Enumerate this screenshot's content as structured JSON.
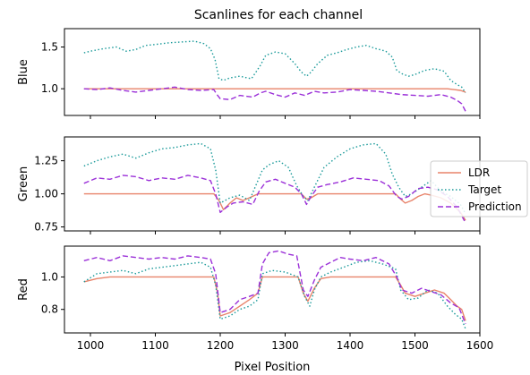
{
  "chart_data": {
    "type": "line",
    "title": "Scanlines for each channel",
    "xlabel": "Pixel Position",
    "xlim": [
      960,
      1600
    ],
    "xticks": [
      1000,
      1100,
      1200,
      1300,
      1400,
      1500,
      1600
    ],
    "legend": {
      "placement": "right",
      "entries": [
        {
          "name": "LDR",
          "color": "#e8836a",
          "style": "solid"
        },
        {
          "name": "Target",
          "color": "#1a9a9a",
          "style": "dotted"
        },
        {
          "name": "Prediction",
          "color": "#9b30d8",
          "style": "dashed"
        }
      ]
    },
    "panels": [
      {
        "ylabel": "Blue",
        "ylim": [
          0.68,
          1.72
        ],
        "yticks": [
          "1.0",
          "1.5"
        ],
        "ytick_values": [
          1.0,
          1.5
        ],
        "series": [
          {
            "name": "LDR",
            "x": [
              990,
              1050,
              1100,
              1150,
              1190,
              1200,
              1250,
              1300,
              1350,
              1400,
              1450,
              1500,
              1550,
              1570,
              1578
            ],
            "y": [
              1.0,
              1.0,
              1.0,
              1.0,
              1.0,
              1.0,
              1.0,
              1.0,
              1.0,
              1.0,
              1.0,
              1.0,
              1.0,
              0.98,
              0.96
            ]
          },
          {
            "name": "Target",
            "x": [
              990,
              1000,
              1020,
              1040,
              1055,
              1070,
              1085,
              1100,
              1120,
              1140,
              1160,
              1175,
              1185,
              1192,
              1198,
              1205,
              1215,
              1230,
              1248,
              1255,
              1262,
              1270,
              1285,
              1300,
              1315,
              1325,
              1333,
              1340,
              1350,
              1365,
              1380,
              1395,
              1410,
              1425,
              1440,
              1455,
              1465,
              1472,
              1480,
              1490,
              1500,
              1515,
              1530,
              1545,
              1555,
              1565,
              1572,
              1578
            ],
            "y": [
              1.43,
              1.45,
              1.48,
              1.5,
              1.45,
              1.47,
              1.52,
              1.53,
              1.55,
              1.56,
              1.57,
              1.54,
              1.48,
              1.35,
              1.12,
              1.1,
              1.13,
              1.15,
              1.12,
              1.2,
              1.28,
              1.4,
              1.44,
              1.42,
              1.3,
              1.2,
              1.15,
              1.2,
              1.3,
              1.4,
              1.43,
              1.47,
              1.5,
              1.52,
              1.48,
              1.45,
              1.38,
              1.22,
              1.18,
              1.15,
              1.17,
              1.22,
              1.24,
              1.21,
              1.1,
              1.05,
              1.02,
              0.95
            ]
          },
          {
            "name": "Prediction",
            "x": [
              990,
              1010,
              1030,
              1050,
              1070,
              1090,
              1110,
              1130,
              1150,
              1170,
              1190,
              1195,
              1200,
              1215,
              1230,
              1250,
              1262,
              1270,
              1285,
              1300,
              1315,
              1330,
              1345,
              1360,
              1380,
              1400,
              1420,
              1440,
              1460,
              1480,
              1500,
              1520,
              1540,
              1555,
              1565,
              1572,
              1578
            ],
            "y": [
              1.0,
              0.99,
              1.01,
              0.98,
              0.96,
              0.98,
              1.0,
              1.02,
              0.99,
              0.98,
              0.99,
              0.93,
              0.88,
              0.87,
              0.92,
              0.9,
              0.95,
              0.97,
              0.93,
              0.9,
              0.95,
              0.92,
              0.97,
              0.95,
              0.96,
              0.99,
              0.98,
              0.97,
              0.95,
              0.93,
              0.92,
              0.91,
              0.93,
              0.9,
              0.86,
              0.82,
              0.73
            ]
          }
        ]
      },
      {
        "ylabel": "Green",
        "ylim": [
          0.72,
          1.43
        ],
        "yticks": [
          "0.75",
          "1.00",
          "1.25"
        ],
        "ytick_values": [
          0.75,
          1.0,
          1.25
        ],
        "series": [
          {
            "name": "LDR",
            "x": [
              990,
              1190,
              1198,
              1205,
              1215,
              1225,
              1235,
              1245,
              1258,
              1270,
              1300,
              1325,
              1333,
              1340,
              1350,
              1400,
              1470,
              1478,
              1485,
              1495,
              1505,
              1515,
              1525,
              1540,
              1555,
              1570,
              1578
            ],
            "y": [
              1.0,
              1.0,
              0.95,
              0.88,
              0.93,
              0.97,
              0.95,
              0.97,
              1.0,
              1.0,
              1.0,
              1.0,
              0.96,
              0.97,
              1.0,
              1.0,
              1.0,
              0.96,
              0.93,
              0.95,
              0.98,
              1.0,
              0.99,
              0.97,
              0.93,
              0.86,
              0.8
            ]
          },
          {
            "name": "Target",
            "x": [
              990,
              1010,
              1030,
              1050,
              1070,
              1090,
              1110,
              1130,
              1150,
              1170,
              1185,
              1193,
              1200,
              1215,
              1230,
              1245,
              1258,
              1265,
              1275,
              1290,
              1305,
              1318,
              1328,
              1335,
              1345,
              1360,
              1380,
              1400,
              1420,
              1440,
              1455,
              1465,
              1475,
              1485,
              1495,
              1510,
              1525,
              1540,
              1555,
              1570,
              1578
            ],
            "y": [
              1.21,
              1.25,
              1.28,
              1.3,
              1.27,
              1.31,
              1.34,
              1.35,
              1.37,
              1.38,
              1.34,
              1.18,
              0.93,
              0.97,
              0.99,
              0.95,
              1.1,
              1.18,
              1.22,
              1.25,
              1.2,
              1.06,
              0.98,
              0.95,
              1.05,
              1.2,
              1.28,
              1.34,
              1.37,
              1.38,
              1.3,
              1.15,
              1.05,
              0.98,
              1.0,
              1.05,
              1.1,
              1.02,
              0.98,
              0.92,
              0.85
            ]
          },
          {
            "name": "Prediction",
            "x": [
              990,
              1010,
              1030,
              1050,
              1070,
              1090,
              1110,
              1130,
              1150,
              1170,
              1185,
              1193,
              1200,
              1210,
              1220,
              1235,
              1250,
              1260,
              1270,
              1285,
              1300,
              1315,
              1325,
              1333,
              1340,
              1350,
              1365,
              1385,
              1405,
              1425,
              1445,
              1460,
              1472,
              1480,
              1490,
              1505,
              1520,
              1535,
              1550,
              1565,
              1578
            ],
            "y": [
              1.08,
              1.12,
              1.11,
              1.14,
              1.13,
              1.1,
              1.12,
              1.11,
              1.14,
              1.12,
              1.1,
              1.0,
              0.86,
              0.9,
              0.93,
              0.94,
              0.92,
              1.02,
              1.09,
              1.11,
              1.08,
              1.05,
              1.0,
              0.92,
              0.98,
              1.05,
              1.07,
              1.09,
              1.12,
              1.11,
              1.1,
              1.06,
              0.98,
              0.96,
              0.98,
              1.04,
              1.05,
              1.03,
              0.98,
              0.9,
              0.78
            ]
          }
        ]
      },
      {
        "ylabel": "Red",
        "ylim": [
          0.655,
          1.19
        ],
        "yticks": [
          "0.8",
          "1.0"
        ],
        "ytick_values": [
          0.8,
          1.0
        ],
        "series": [
          {
            "name": "LDR",
            "x": [
              990,
              1010,
              1030,
              1050,
              1100,
              1150,
              1190,
              1196,
              1200,
              1215,
              1230,
              1245,
              1258,
              1265,
              1275,
              1300,
              1320,
              1328,
              1335,
              1345,
              1355,
              1370,
              1400,
              1440,
              1470,
              1478,
              1485,
              1500,
              1515,
              1530,
              1545,
              1555,
              1565,
              1572,
              1578
            ],
            "y": [
              0.97,
              0.99,
              1.0,
              1.0,
              1.0,
              1.0,
              1.0,
              0.9,
              0.76,
              0.78,
              0.82,
              0.86,
              0.9,
              1.0,
              1.0,
              1.0,
              1.0,
              0.9,
              0.85,
              0.93,
              0.99,
              1.0,
              1.0,
              1.0,
              1.0,
              0.95,
              0.9,
              0.88,
              0.9,
              0.92,
              0.9,
              0.86,
              0.82,
              0.8,
              0.73
            ]
          },
          {
            "name": "Target",
            "x": [
              990,
              1010,
              1030,
              1050,
              1070,
              1090,
              1110,
              1130,
              1150,
              1170,
              1185,
              1193,
              1200,
              1215,
              1230,
              1245,
              1258,
              1265,
              1280,
              1300,
              1320,
              1330,
              1338,
              1345,
              1355,
              1370,
              1390,
              1410,
              1430,
              1450,
              1470,
              1478,
              1490,
              1505,
              1520,
              1535,
              1550,
              1562,
              1572,
              1578
            ],
            "y": [
              0.97,
              1.02,
              1.03,
              1.04,
              1.02,
              1.05,
              1.06,
              1.07,
              1.08,
              1.09,
              1.06,
              0.95,
              0.74,
              0.76,
              0.8,
              0.82,
              0.86,
              1.02,
              1.04,
              1.03,
              1.0,
              0.88,
              0.82,
              0.92,
              1.0,
              1.03,
              1.06,
              1.09,
              1.1,
              1.08,
              1.05,
              0.92,
              0.86,
              0.87,
              0.92,
              0.9,
              0.82,
              0.77,
              0.74,
              0.68
            ]
          },
          {
            "name": "Prediction",
            "x": [
              990,
              1010,
              1030,
              1050,
              1070,
              1090,
              1110,
              1130,
              1150,
              1170,
              1185,
              1193,
              1200,
              1215,
              1230,
              1245,
              1258,
              1265,
              1275,
              1290,
              1305,
              1318,
              1328,
              1335,
              1345,
              1355,
              1370,
              1385,
              1400,
              1420,
              1440,
              1460,
              1472,
              1480,
              1495,
              1510,
              1525,
              1540,
              1555,
              1568,
              1578
            ],
            "y": [
              1.1,
              1.12,
              1.1,
              1.13,
              1.12,
              1.11,
              1.12,
              1.11,
              1.13,
              1.12,
              1.11,
              1.02,
              0.78,
              0.8,
              0.86,
              0.88,
              0.9,
              1.08,
              1.15,
              1.16,
              1.14,
              1.13,
              0.92,
              0.88,
              0.98,
              1.06,
              1.09,
              1.12,
              1.11,
              1.1,
              1.12,
              1.08,
              1.0,
              0.92,
              0.9,
              0.93,
              0.91,
              0.89,
              0.84,
              0.81,
              0.71
            ]
          }
        ]
      }
    ]
  }
}
